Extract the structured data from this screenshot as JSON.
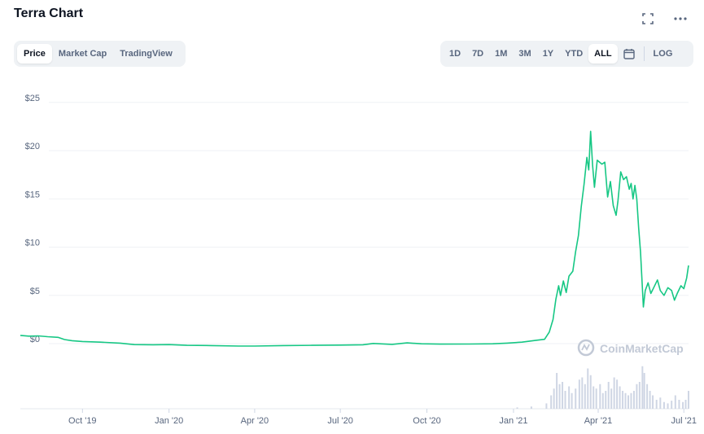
{
  "header": {
    "title": "Terra Chart"
  },
  "icons": {
    "fullscreen": "fullscreen-icon",
    "more": "more-icon",
    "calendar": "calendar-icon"
  },
  "tabs": [
    {
      "label": "Price",
      "active": true
    },
    {
      "label": "Market Cap",
      "active": false
    },
    {
      "label": "TradingView",
      "active": false
    }
  ],
  "ranges": [
    {
      "label": "1D",
      "active": false
    },
    {
      "label": "7D",
      "active": false
    },
    {
      "label": "1M",
      "active": false
    },
    {
      "label": "3M",
      "active": false
    },
    {
      "label": "1Y",
      "active": false
    },
    {
      "label": "YTD",
      "active": false
    },
    {
      "label": "ALL",
      "active": true
    }
  ],
  "log_label": "LOG",
  "watermark": "CoinMarketCap",
  "colors": {
    "line": "#16c784",
    "volume": "#cfd6e4",
    "grid": "#eff2f5",
    "text": "#58667e"
  },
  "chart_data": {
    "type": "line",
    "title": "",
    "xlabel": "",
    "ylabel": "",
    "ylim": [
      -6,
      26
    ],
    "grid": true,
    "yticks": [
      "$0",
      "$5",
      "$10",
      "$15",
      "$20",
      "$25"
    ],
    "ytick_values": [
      0,
      5,
      10,
      15,
      20,
      25
    ],
    "xticks": [
      "Oct '19",
      "Jan '20",
      "Apr '20",
      "Jul '20",
      "Oct '20",
      "Jan '21",
      "Apr '21",
      "Jul '21"
    ],
    "xtick_values": [
      "2019-10-01",
      "2020-01-01",
      "2020-04-01",
      "2020-07-01",
      "2020-10-01",
      "2021-01-01",
      "2021-04-01",
      "2021-07-01"
    ],
    "series": [
      {
        "values": [
          [
            "2019-07-27",
            0.85
          ],
          [
            "2019-08-05",
            0.78
          ],
          [
            "2019-08-15",
            0.8
          ],
          [
            "2019-08-25",
            0.72
          ],
          [
            "2019-09-05",
            0.65
          ],
          [
            "2019-09-12",
            0.42
          ],
          [
            "2019-09-20",
            0.3
          ],
          [
            "2019-10-01",
            0.22
          ],
          [
            "2019-10-20",
            0.15
          ],
          [
            "2019-11-10",
            0.05
          ],
          [
            "2019-11-25",
            -0.1
          ],
          [
            "2019-12-15",
            -0.12
          ],
          [
            "2020-01-01",
            -0.1
          ],
          [
            "2020-01-20",
            -0.18
          ],
          [
            "2020-02-15",
            -0.2
          ],
          [
            "2020-03-15",
            -0.25
          ],
          [
            "2020-04-01",
            -0.25
          ],
          [
            "2020-05-01",
            -0.2
          ],
          [
            "2020-06-01",
            -0.18
          ],
          [
            "2020-07-01",
            -0.15
          ],
          [
            "2020-07-25",
            -0.12
          ],
          [
            "2020-08-05",
            0.02
          ],
          [
            "2020-08-25",
            -0.08
          ],
          [
            "2020-09-10",
            0.08
          ],
          [
            "2020-09-25",
            -0.02
          ],
          [
            "2020-10-15",
            -0.05
          ],
          [
            "2020-11-15",
            -0.04
          ],
          [
            "2020-12-10",
            -0.02
          ],
          [
            "2020-12-25",
            0.05
          ],
          [
            "2021-01-10",
            0.15
          ],
          [
            "2021-01-25",
            0.35
          ],
          [
            "2021-02-03",
            0.45
          ],
          [
            "2021-02-08",
            1.2
          ],
          [
            "2021-02-12",
            2.5
          ],
          [
            "2021-02-15",
            4.6
          ],
          [
            "2021-02-18",
            6.0
          ],
          [
            "2021-02-20",
            5.0
          ],
          [
            "2021-02-23",
            6.5
          ],
          [
            "2021-02-26",
            5.3
          ],
          [
            "2021-03-01",
            7.0
          ],
          [
            "2021-03-05",
            7.5
          ],
          [
            "2021-03-08",
            9.5
          ],
          [
            "2021-03-11",
            11.2
          ],
          [
            "2021-03-14",
            14.2
          ],
          [
            "2021-03-17",
            16.5
          ],
          [
            "2021-03-20",
            19.3
          ],
          [
            "2021-03-22",
            18.0
          ],
          [
            "2021-03-24",
            22.0
          ],
          [
            "2021-03-26",
            18.5
          ],
          [
            "2021-03-28",
            16.2
          ],
          [
            "2021-03-31",
            19.0
          ],
          [
            "2021-04-05",
            18.6
          ],
          [
            "2021-04-08",
            18.8
          ],
          [
            "2021-04-11",
            15.2
          ],
          [
            "2021-04-14",
            16.8
          ],
          [
            "2021-04-17",
            14.3
          ],
          [
            "2021-04-20",
            13.3
          ],
          [
            "2021-04-22",
            14.8
          ],
          [
            "2021-04-25",
            17.8
          ],
          [
            "2021-04-28",
            17.0
          ],
          [
            "2021-05-01",
            17.3
          ],
          [
            "2021-05-04",
            16.0
          ],
          [
            "2021-05-06",
            16.6
          ],
          [
            "2021-05-08",
            15.0
          ],
          [
            "2021-05-10",
            16.4
          ],
          [
            "2021-05-12",
            15.0
          ],
          [
            "2021-05-14",
            12.0
          ],
          [
            "2021-05-16",
            9.5
          ],
          [
            "2021-05-19",
            3.8
          ],
          [
            "2021-05-21",
            5.5
          ],
          [
            "2021-05-24",
            6.3
          ],
          [
            "2021-05-27",
            5.2
          ],
          [
            "2021-05-30",
            5.8
          ],
          [
            "2021-06-03",
            6.6
          ],
          [
            "2021-06-06",
            5.5
          ],
          [
            "2021-06-10",
            5.0
          ],
          [
            "2021-06-14",
            5.8
          ],
          [
            "2021-06-18",
            5.5
          ],
          [
            "2021-06-21",
            4.5
          ],
          [
            "2021-06-24",
            5.2
          ],
          [
            "2021-06-28",
            6.0
          ],
          [
            "2021-07-01",
            5.7
          ],
          [
            "2021-07-04",
            6.8
          ],
          [
            "2021-07-06",
            8.1
          ]
        ]
      }
    ],
    "volume": [
      [
        "2021-01-05",
        0.03
      ],
      [
        "2021-01-20",
        0.05
      ],
      [
        "2021-02-05",
        0.12
      ],
      [
        "2021-02-10",
        0.3
      ],
      [
        "2021-02-13",
        0.45
      ],
      [
        "2021-02-16",
        0.8
      ],
      [
        "2021-02-19",
        0.55
      ],
      [
        "2021-02-22",
        0.6
      ],
      [
        "2021-02-25",
        0.4
      ],
      [
        "2021-03-01",
        0.5
      ],
      [
        "2021-03-04",
        0.35
      ],
      [
        "2021-03-08",
        0.45
      ],
      [
        "2021-03-12",
        0.65
      ],
      [
        "2021-03-15",
        0.7
      ],
      [
        "2021-03-18",
        0.55
      ],
      [
        "2021-03-21",
        0.9
      ],
      [
        "2021-03-24",
        0.75
      ],
      [
        "2021-03-27",
        0.5
      ],
      [
        "2021-03-30",
        0.45
      ],
      [
        "2021-04-03",
        0.55
      ],
      [
        "2021-04-06",
        0.35
      ],
      [
        "2021-04-09",
        0.4
      ],
      [
        "2021-04-12",
        0.6
      ],
      [
        "2021-04-15",
        0.45
      ],
      [
        "2021-04-18",
        0.7
      ],
      [
        "2021-04-21",
        0.65
      ],
      [
        "2021-04-24",
        0.5
      ],
      [
        "2021-04-27",
        0.4
      ],
      [
        "2021-04-30",
        0.35
      ],
      [
        "2021-05-03",
        0.3
      ],
      [
        "2021-05-06",
        0.35
      ],
      [
        "2021-05-09",
        0.4
      ],
      [
        "2021-05-12",
        0.55
      ],
      [
        "2021-05-15",
        0.6
      ],
      [
        "2021-05-18",
        0.95
      ],
      [
        "2021-05-20",
        0.8
      ],
      [
        "2021-05-23",
        0.55
      ],
      [
        "2021-05-26",
        0.4
      ],
      [
        "2021-05-29",
        0.3
      ],
      [
        "2021-06-02",
        0.2
      ],
      [
        "2021-06-06",
        0.25
      ],
      [
        "2021-06-10",
        0.15
      ],
      [
        "2021-06-14",
        0.12
      ],
      [
        "2021-06-18",
        0.18
      ],
      [
        "2021-06-22",
        0.3
      ],
      [
        "2021-06-26",
        0.2
      ],
      [
        "2021-06-30",
        0.15
      ],
      [
        "2021-07-03",
        0.2
      ],
      [
        "2021-07-06",
        0.4
      ]
    ]
  }
}
